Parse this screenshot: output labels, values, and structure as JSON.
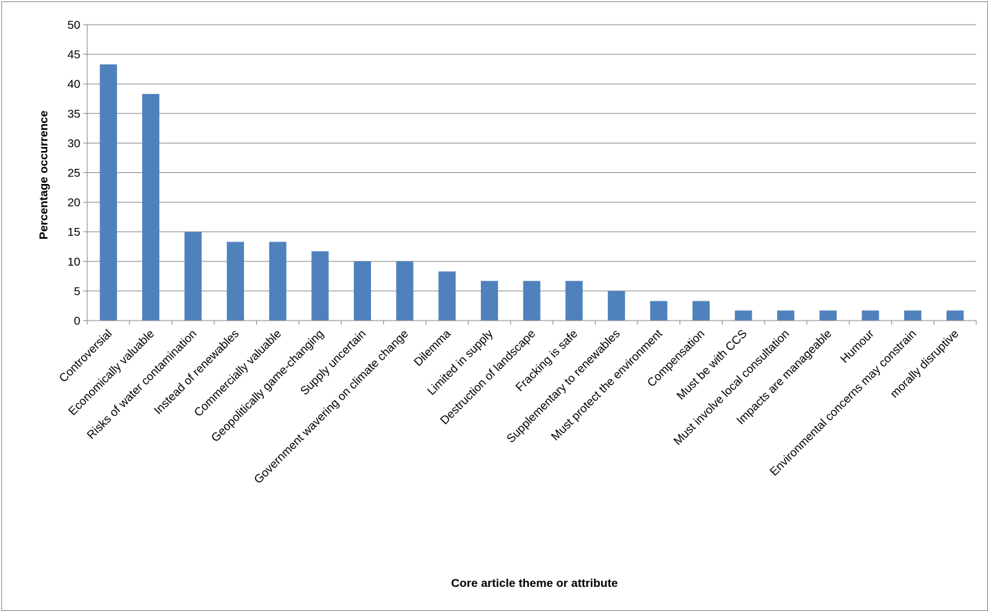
{
  "chart_data": {
    "type": "bar",
    "title": "",
    "xlabel": "Core article theme or attribute",
    "ylabel": "Percentage occurrence",
    "ylim": [
      0,
      50
    ],
    "yticks": [
      0,
      5,
      10,
      15,
      20,
      25,
      30,
      35,
      40,
      45,
      50
    ],
    "grid": true,
    "legend": "none",
    "bar_color": "#4F81BD",
    "categories": [
      "Controversial",
      "Economically valuable",
      "Risks of water contamination",
      "Instead of renewables",
      "Commercially valuable",
      "Geopolitically game-changing",
      "Supply uncertain",
      "Government wavering on climate change",
      "Dilemma",
      "Limited in supply",
      "Destruction of landscape",
      "Fracking is safe",
      "Supplementary to renewables",
      "Must protect the environment",
      "Compensation",
      "Must be with CCS",
      "Must involve local consultation",
      "Impacts are manageable",
      "Humour",
      "Environmental concerns may constrain",
      "morally disruptive"
    ],
    "values": [
      43.3,
      38.3,
      15.0,
      13.3,
      13.3,
      11.7,
      10.0,
      10.0,
      8.3,
      6.7,
      6.7,
      6.7,
      5.0,
      3.3,
      3.3,
      1.7,
      1.7,
      1.7,
      1.7,
      1.7,
      1.7
    ]
  }
}
